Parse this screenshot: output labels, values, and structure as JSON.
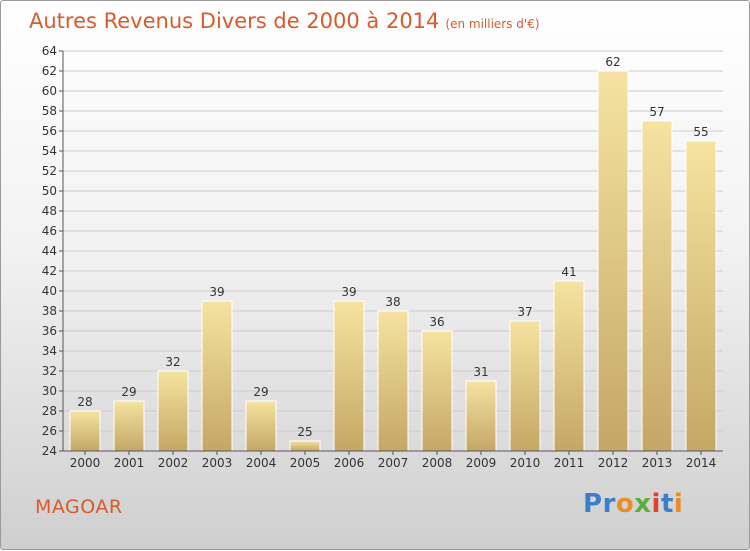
{
  "title": "Autres Revenus Divers de 2000 à 2014",
  "subtitle": "(en milliers d'€)",
  "footer": {
    "commune": "MAGOAR",
    "brand": "Proxiti"
  },
  "colors": {
    "title": "#d95a2b",
    "bar_light": "#f6e3a1",
    "bar_dark": "#c4a765",
    "grid": "#cccccc",
    "axis": "#555555",
    "brand_letters": [
      "#3a7fc8",
      "#3a7fc8",
      "#e98d25",
      "#5bb03b",
      "#e2402f",
      "#3a7fc8",
      "#e98d25"
    ]
  },
  "chart_data": {
    "type": "bar",
    "categories": [
      "2000",
      "2001",
      "2002",
      "2003",
      "2004",
      "2005",
      "2006",
      "2007",
      "2008",
      "2009",
      "2010",
      "2011",
      "2012",
      "2013",
      "2014"
    ],
    "values": [
      28,
      29,
      32,
      39,
      29,
      25,
      39,
      38,
      36,
      31,
      37,
      41,
      62,
      57,
      55
    ],
    "ylim": [
      24,
      64
    ],
    "yticks": [
      24,
      26,
      28,
      30,
      32,
      34,
      36,
      38,
      40,
      42,
      44,
      46,
      48,
      50,
      52,
      54,
      56,
      58,
      60,
      62,
      64
    ],
    "grid": true,
    "xlabel": "",
    "ylabel": ""
  }
}
